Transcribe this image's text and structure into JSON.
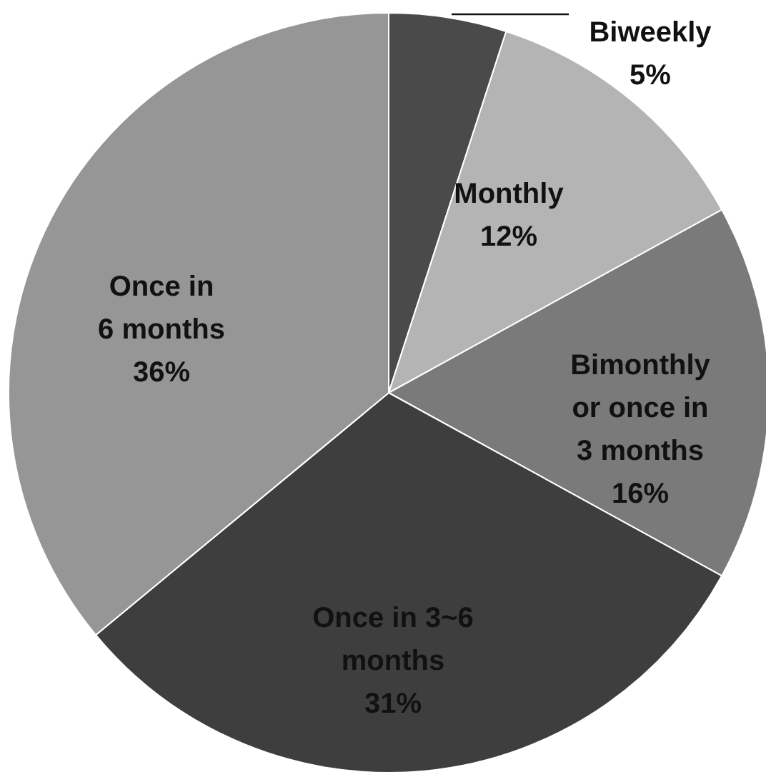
{
  "chart_data": {
    "type": "pie",
    "categories": [
      "Biweekly",
      "Monthly",
      "Bimonthly or once in 3 months",
      "Once in 3~6 months",
      "Once in 6 months"
    ],
    "values": [
      5,
      12,
      16,
      31,
      36
    ],
    "colors": [
      "#4a4a4a",
      "#b4b4b4",
      "#7a7a7a",
      "#3e3e3e",
      "#969696"
    ],
    "value_labels": [
      "5%",
      "12%",
      "16%",
      "31%",
      "36%"
    ]
  }
}
